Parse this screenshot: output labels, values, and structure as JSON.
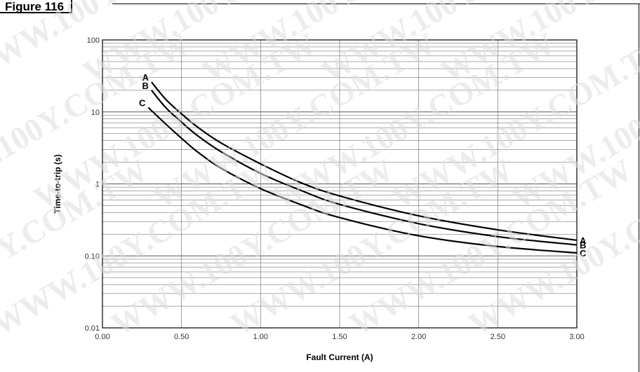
{
  "figure_label": "Figure 116",
  "watermark_text": "WWW.100Y.COM.TW",
  "chart_data": {
    "type": "line",
    "title": "",
    "xlabel": "Fault Current (A)",
    "ylabel": "Time-to-trip (s)",
    "xlim": [
      0,
      3
    ],
    "ylim": [
      0.01,
      100
    ],
    "yscale": "log",
    "grid": true,
    "x_ticks": [
      {
        "value": 0,
        "label": "0.00"
      },
      {
        "value": 0.5,
        "label": "0.50"
      },
      {
        "value": 1,
        "label": "1.00"
      },
      {
        "value": 1.5,
        "label": "1.50"
      },
      {
        "value": 2,
        "label": "2.00"
      },
      {
        "value": 2.5,
        "label": "2.50"
      },
      {
        "value": 3,
        "label": "3.00"
      }
    ],
    "y_ticks": [
      {
        "value": 0.01,
        "label": "0.01"
      },
      {
        "value": 0.1,
        "label": "0.10"
      },
      {
        "value": 1,
        "label": "1"
      },
      {
        "value": 10,
        "label": "10"
      },
      {
        "value": 100,
        "label": "100"
      }
    ],
    "series": [
      {
        "name": "A",
        "color": "#000000",
        "x": [
          0.31,
          0.4,
          0.5,
          0.6,
          0.75,
          1.0,
          1.25,
          1.5,
          2.0,
          2.5,
          3.0
        ],
        "y": [
          26,
          15,
          9.4,
          6.2,
          3.7,
          1.9,
          1.05,
          0.68,
          0.36,
          0.23,
          0.165
        ]
      },
      {
        "name": "B",
        "color": "#000000",
        "x": [
          0.31,
          0.4,
          0.5,
          0.6,
          0.75,
          1.0,
          1.25,
          1.5,
          2.0,
          2.5,
          3.0
        ],
        "y": [
          20,
          11.5,
          7.2,
          4.7,
          2.8,
          1.4,
          0.82,
          0.52,
          0.28,
          0.185,
          0.142
        ]
      },
      {
        "name": "C",
        "color": "#000000",
        "x": [
          0.29,
          0.4,
          0.5,
          0.6,
          0.75,
          1.0,
          1.25,
          1.5,
          2.0,
          2.5,
          3.0
        ],
        "y": [
          11.5,
          6.8,
          4.3,
          2.8,
          1.65,
          0.86,
          0.52,
          0.34,
          0.19,
          0.135,
          0.11
        ]
      }
    ]
  }
}
